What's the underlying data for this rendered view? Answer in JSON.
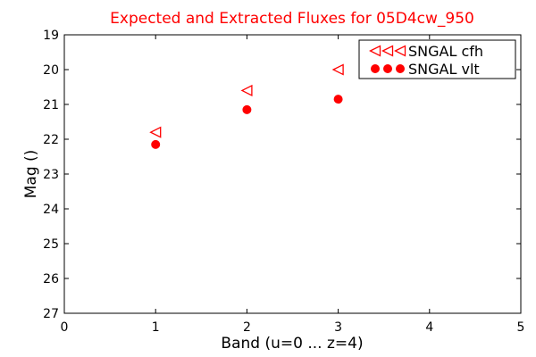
{
  "chart_data": {
    "type": "scatter",
    "title": "Expected and Extracted Fluxes for 05D4cw_950",
    "xlabel": "Band (u=0 ... z=4)",
    "ylabel": "Mag ()",
    "xlim": [
      0,
      5
    ],
    "ylim": [
      27,
      19
    ],
    "y_inverted": true,
    "xticks": [
      "0",
      "1",
      "2",
      "3",
      "4",
      "5"
    ],
    "yticks": [
      "19",
      "20",
      "21",
      "22",
      "23",
      "24",
      "25",
      "26",
      "27"
    ],
    "grid": false,
    "legend_position": "top-right",
    "series": [
      {
        "name": "SNGAL cfh",
        "marker": "triangle-left-open",
        "color": "#ff0000",
        "x": [
          1,
          2,
          3
        ],
        "y": [
          21.8,
          20.6,
          20.0
        ]
      },
      {
        "name": "SNGAL vlt",
        "marker": "circle-filled",
        "color": "#ff0000",
        "x": [
          1,
          2,
          3
        ],
        "y": [
          22.15,
          21.15,
          20.85
        ]
      }
    ],
    "title_color": "#ff0000"
  }
}
